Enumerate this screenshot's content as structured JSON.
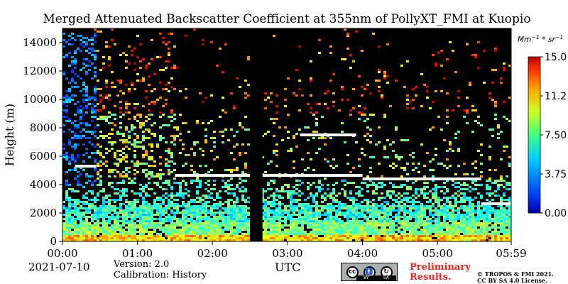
{
  "chart_data": {
    "type": "heatmap",
    "title": "Merged Attenuated Backscatter Coefficient at 355nm of PollyXT_FMI at Kuopio",
    "xlabel": "UTC",
    "ylabel": "Height (m)",
    "x_ticks": [
      "00:00",
      "01:00",
      "02:00",
      "03:00",
      "04:00",
      "05:00",
      "05:59"
    ],
    "x_range_hours": [
      0,
      5.983
    ],
    "y_ticks": [
      0,
      2000,
      4000,
      6000,
      8000,
      10000,
      12000,
      14000
    ],
    "ylim": [
      0,
      15000
    ],
    "colorbar": {
      "unit_label": "Mm^-1 * sr^-1",
      "ticks": [
        "0.00",
        "3.75",
        "7.50",
        "11.2",
        "15.0"
      ],
      "range": [
        0,
        15
      ],
      "colormap": "jet"
    },
    "features": {
      "data_gap_utc": [
        "02:30",
        "02:40"
      ],
      "cloud_layers": [
        {
          "start": "00:10",
          "end": "00:27",
          "height_m": 5300
        },
        {
          "start": "01:30",
          "end": "02:30",
          "height_m": 4650
        },
        {
          "start": "02:40",
          "end": "04:00",
          "height_m": 4650
        },
        {
          "start": "03:10",
          "end": "03:55",
          "height_m": 7500
        },
        {
          "start": "04:00",
          "end": "05:35",
          "height_m": 4400
        },
        {
          "start": "05:35",
          "end": "05:59",
          "height_m": 2650
        }
      ]
    }
  },
  "footer": {
    "date": "2021-07-10",
    "version": "Version: 2.0",
    "calibration": "Calibration: History",
    "utc_label": "UTC",
    "preliminary_line1": "Preliminary",
    "preliminary_line2": "Results.",
    "copyright_line1": "© TROPOS & FMI 2021.",
    "copyright_line2": "CC BY SA 4.0 License.",
    "license_badge": {
      "cc": "cc",
      "by": "BY",
      "sa": "SA"
    }
  },
  "colors": {
    "background": "#000000",
    "cloud": "#ffffff",
    "preliminary": "#ff2020"
  }
}
